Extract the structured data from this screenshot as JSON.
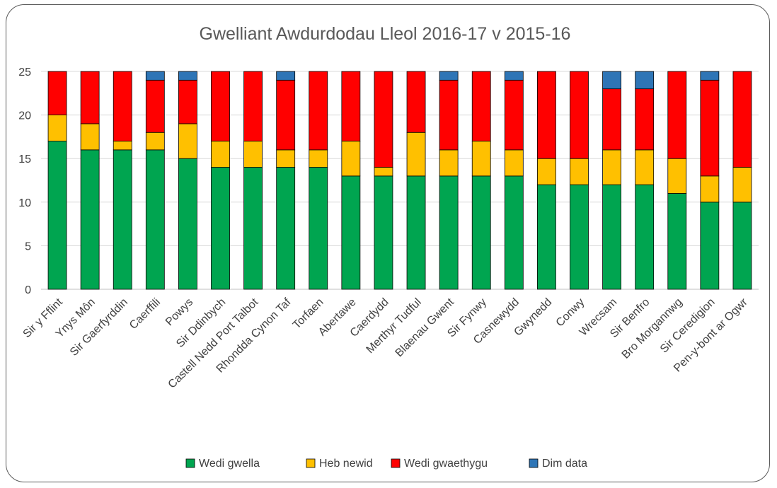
{
  "chart_data": {
    "type": "bar",
    "stacked": true,
    "title": "Gwelliant Awdurdodau Lleol 2016-17 v 2015-16",
    "xlabel": "",
    "ylabel": "",
    "ylim": [
      0,
      25
    ],
    "yticks": [
      0,
      5,
      10,
      15,
      20,
      25
    ],
    "grid": true,
    "legend_position": "bottom",
    "categories": [
      "Sir y Fflint",
      "Ynys Môn",
      "Sir Gaerfyrddin",
      "Caerffili",
      "Powys",
      "Sir Ddinbych",
      "Castell Nedd Port Talbot",
      "Rhondda Cynon Taf",
      "Torfaen",
      "Abertawe",
      "Caerdydd",
      "Merthyr Tudful",
      "Blaenau Gwent",
      "Sir Fynwy",
      "Casnewydd",
      "Gwynedd",
      "Conwy",
      "Wrecsam",
      "Sir Benfro",
      "Bro Morgannwg",
      "Sir Ceredigion",
      "Pen-y-bont ar Ogwr"
    ],
    "series": [
      {
        "name": "Wedi gwella",
        "color": "#00a550",
        "values": [
          17,
          16,
          16,
          16,
          15,
          14,
          14,
          14,
          14,
          13,
          13,
          13,
          13,
          13,
          13,
          12,
          12,
          12,
          12,
          11,
          10,
          10
        ]
      },
      {
        "name": "Heb newid",
        "color": "#ffc000",
        "values": [
          3,
          3,
          1,
          2,
          4,
          3,
          3,
          2,
          2,
          4,
          1,
          5,
          3,
          4,
          3,
          3,
          3,
          4,
          4,
          4,
          3,
          4
        ]
      },
      {
        "name": "Wedi gwaethygu",
        "color": "#ff0000",
        "values": [
          5,
          6,
          8,
          6,
          5,
          8,
          8,
          8,
          9,
          8,
          11,
          7,
          8,
          8,
          8,
          10,
          10,
          7,
          7,
          10,
          11,
          11
        ]
      },
      {
        "name": "Dim data",
        "color": "#2e75b6",
        "values": [
          0,
          0,
          0,
          1,
          1,
          0,
          0,
          1,
          0,
          0,
          0,
          0,
          1,
          0,
          1,
          0,
          0,
          2,
          2,
          0,
          1,
          0
        ]
      }
    ]
  }
}
